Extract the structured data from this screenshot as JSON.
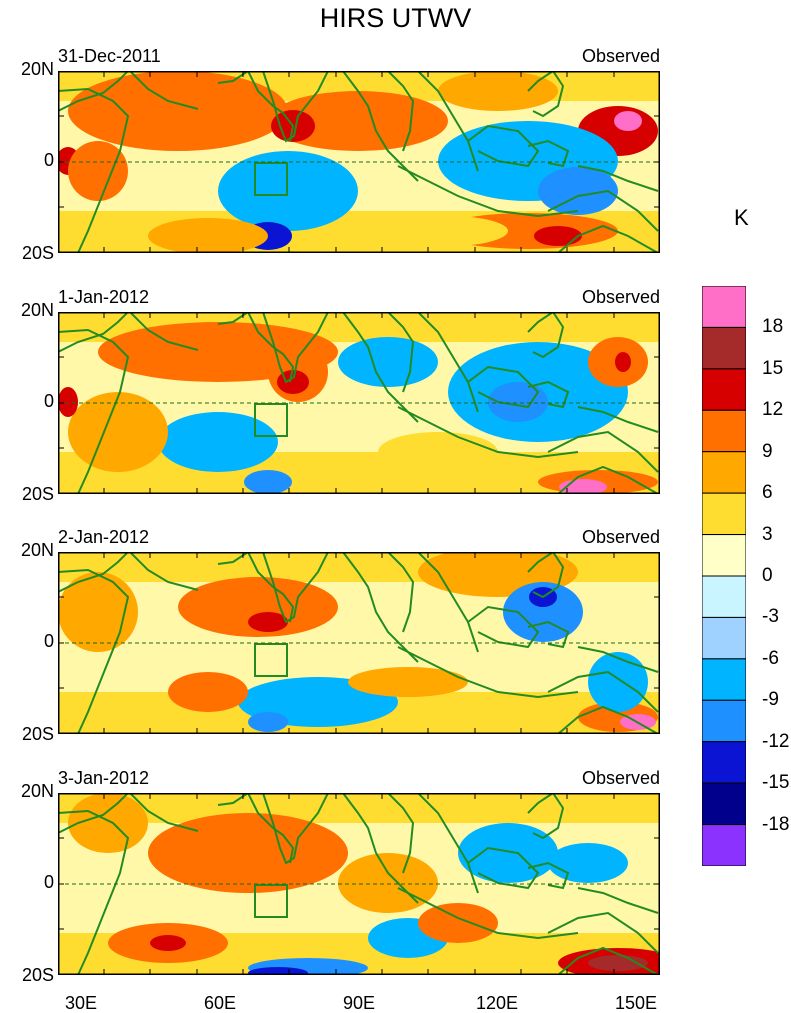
{
  "figure": {
    "title": "HIRS UTWV",
    "units": "K"
  },
  "panels": [
    {
      "date": "31-Dec-2011",
      "label": "Observed"
    },
    {
      "date": "1-Jan-2012",
      "label": "Observed"
    },
    {
      "date": "2-Jan-2012",
      "label": "Observed"
    },
    {
      "date": "3-Jan-2012",
      "label": "Observed"
    }
  ],
  "axes": {
    "lat_labels": [
      "20N",
      "0",
      "20S"
    ],
    "lon_labels": [
      "30E",
      "60E",
      "90E",
      "120E",
      "150E"
    ],
    "lon_range": [
      30,
      160
    ],
    "lat_range": [
      -20,
      20
    ]
  },
  "colorbar": {
    "labels": [
      "18",
      "15",
      "12",
      "9",
      "6",
      "3",
      "0",
      "-3",
      "-6",
      "-9",
      "-12",
      "-15",
      "-18"
    ],
    "colors": [
      "#ff6ec7",
      "#a52a2a",
      "#d70000",
      "#ff7000",
      "#ffa800",
      "#ffdd30",
      "#ffffc8",
      "#c8f5ff",
      "#a0d2ff",
      "#00b4ff",
      "#1e90ff",
      "#0a14d2",
      "#00008c",
      "#8c32ff"
    ]
  },
  "map_style": {
    "coast_color": "#228b22",
    "equator_style": "dashed"
  }
}
